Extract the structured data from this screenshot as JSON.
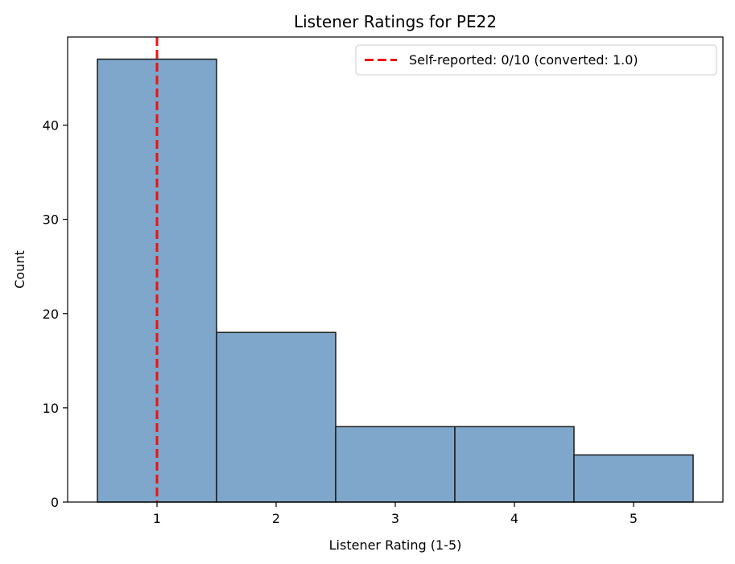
{
  "chart_data": {
    "type": "bar",
    "title": "Listener Ratings for PE22",
    "xlabel": "Listener Rating (1-5)",
    "ylabel": "Count",
    "categories": [
      1,
      2,
      3,
      4,
      5
    ],
    "values": [
      47,
      18,
      8,
      8,
      5
    ],
    "xlim": [
      0.25,
      5.75
    ],
    "ylim": [
      0,
      49.35
    ],
    "xticks": [
      1,
      2,
      3,
      4,
      5
    ],
    "yticks": [
      0,
      10,
      20,
      30,
      40
    ],
    "bar_color": "#7ea7cb",
    "bar_edge_color": "#1a1a1a",
    "reference_line": {
      "x": 1.0,
      "color": "#ee1111",
      "style": "dashed",
      "label": "Self-reported: 0/10 (converted: 1.0)"
    },
    "legend_position": "top-right",
    "grid": false
  }
}
